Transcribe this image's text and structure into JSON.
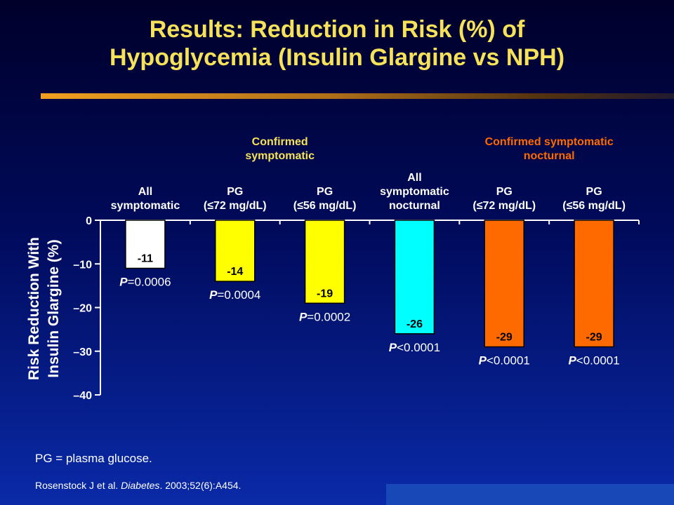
{
  "title": {
    "line1": "Results: Reduction in Risk (%) of",
    "line2": "Hypoglycemia (Insulin Glargine vs NPH)"
  },
  "colors": {
    "title": "#f6e25a",
    "group_confirmed_symptomatic": "#f6e25a",
    "group_confirmed_nocturnal": "#ff6a00",
    "bar_all_symptomatic": "#ffffff",
    "bar_confirmed_symptomatic": "#ffff00",
    "bar_all_nocturnal": "#00ffff",
    "bar_confirmed_nocturnal": "#ff6a00"
  },
  "chart_data": {
    "type": "bar",
    "ylabel": "Risk Reduction With Insulin Glargine (%)",
    "ylim": [
      -40,
      0
    ],
    "yticks": [
      0,
      -10,
      -20,
      -30,
      -40
    ],
    "ytick_labels": [
      "0",
      "–10",
      "–20",
      "–30",
      "–40"
    ],
    "group_labels": [
      {
        "text": "Confirmed symptomatic",
        "lines": [
          "Confirmed",
          "symptomatic"
        ],
        "color": "#f6e25a"
      },
      {
        "text": "Confirmed symptomatic nocturnal",
        "lines": [
          "Confirmed symptomatic",
          "nocturnal"
        ],
        "color": "#ff6a00"
      }
    ],
    "categories": [
      {
        "lines": [
          "All",
          "symptomatic"
        ]
      },
      {
        "lines": [
          "PG",
          "(≤72 mg/dL)"
        ]
      },
      {
        "lines": [
          "PG",
          "(≤56 mg/dL)"
        ]
      },
      {
        "lines": [
          "All",
          "symptomatic",
          "nocturnal"
        ]
      },
      {
        "lines": [
          "PG",
          "(≤72 mg/dL)"
        ]
      },
      {
        "lines": [
          "PG",
          "(≤56 mg/dL)"
        ]
      }
    ],
    "values": [
      -11,
      -14,
      -19,
      -26,
      -29,
      -29
    ],
    "value_labels": [
      "-11",
      "-14",
      "-19",
      "-26",
      "-29",
      "-29"
    ],
    "pvalues": [
      {
        "sym": "=",
        "num": "0.0006"
      },
      {
        "sym": "=",
        "num": "0.0004"
      },
      {
        "sym": "=",
        "num": "0.0002"
      },
      {
        "sym": "<",
        "num": "0.0001"
      },
      {
        "sym": "<",
        "num": "0.0001"
      },
      {
        "sym": "<",
        "num": "0.0001"
      }
    ],
    "p_letter": "P",
    "bar_colors": [
      "#ffffff",
      "#ffff00",
      "#ffff00",
      "#00ffff",
      "#ff6a00",
      "#ff6a00"
    ]
  },
  "footnote": "PG = plasma glucose.",
  "citation": {
    "authors": "Rosenstock J et al. ",
    "journal": "Diabetes",
    "details": ". 2003;52(6):A454."
  }
}
